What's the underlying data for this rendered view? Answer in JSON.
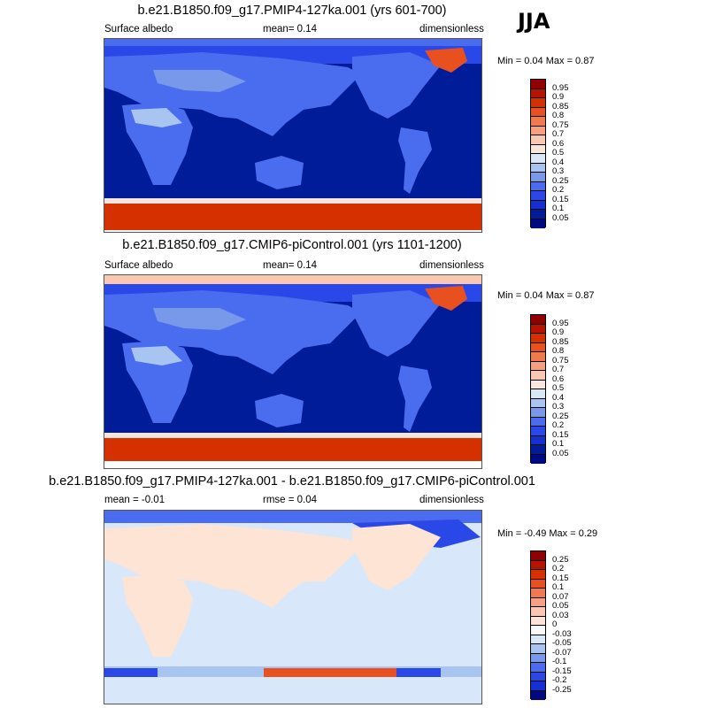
{
  "season": "JJA",
  "panels": [
    {
      "title": "b.e21.B1850.f09_g17.PMIP4-127ka.001 (yrs 601-700)",
      "left_label": "Surface albedo",
      "center_label": "mean=   0.14",
      "right_label": "dimensionless",
      "minmax": "Min =   0.04 Max =   0.87",
      "colorbar_labels": [
        "0.95",
        "0.9",
        "0.85",
        "0.8",
        "0.75",
        "0.7",
        "0.6",
        "0.5",
        "0.4",
        "0.3",
        "0.25",
        "0.2",
        "0.15",
        "0.1",
        "0.05"
      ]
    },
    {
      "title": "b.e21.B1850.f09_g17.CMIP6-piControl.001 (yrs 1101-1200)",
      "left_label": "Surface albedo",
      "center_label": "mean=   0.14",
      "right_label": "dimensionless",
      "minmax": "Min =   0.04 Max =   0.87",
      "colorbar_labels": [
        "0.95",
        "0.9",
        "0.85",
        "0.8",
        "0.75",
        "0.7",
        "0.6",
        "0.5",
        "0.4",
        "0.3",
        "0.25",
        "0.2",
        "0.15",
        "0.1",
        "0.05"
      ]
    },
    {
      "title": "b.e21.B1850.f09_g17.PMIP4-127ka.001 - b.e21.B1850.f09_g17.CMIP6-piControl.001",
      "left_label": "mean =  -0.01",
      "center_label": "rmse =   0.04",
      "right_label": "dimensionless",
      "minmax": "Min =  -0.49 Max =   0.29",
      "colorbar_labels": [
        "0.25",
        "0.2",
        "0.15",
        "0.1",
        "0.07",
        "0.05",
        "0.03",
        "0",
        "-0.03",
        "-0.05",
        "-0.07",
        "-0.1",
        "-0.15",
        "-0.2",
        "-0.25"
      ]
    }
  ],
  "colors": {
    "abs_scale": [
      "#900000",
      "#b41400",
      "#d43000",
      "#e85020",
      "#f07a50",
      "#f6a080",
      "#fac8b0",
      "#f8e6dc",
      "#d8e8f8",
      "#a8c4f0",
      "#7898ea",
      "#4a6cee",
      "#2a48e8",
      "#1430d0",
      "#001c98",
      "#000a80"
    ],
    "diff_scale": [
      "#900000",
      "#b41400",
      "#d43000",
      "#e85020",
      "#f07a50",
      "#f6a080",
      "#fac8b0",
      "#fde4d4",
      "#f8f8f8",
      "#d8e8fa",
      "#a8c4f0",
      "#7898ea",
      "#4a6cee",
      "#2a48e8",
      "#1430d0",
      "#000a80"
    ]
  },
  "chart_data": [
    {
      "type": "heatmap",
      "title": "b.e21.B1850.f09_g17.PMIP4-127ka.001 (yrs 601-700)",
      "variable": "Surface albedo",
      "units": "dimensionless",
      "season": "JJA",
      "mean": 0.14,
      "min": 0.04,
      "max": 0.87,
      "contour_levels": [
        0.05,
        0.1,
        0.15,
        0.2,
        0.25,
        0.3,
        0.4,
        0.5,
        0.6,
        0.7,
        0.75,
        0.8,
        0.85,
        0.9,
        0.95
      ]
    },
    {
      "type": "heatmap",
      "title": "b.e21.B1850.f09_g17.CMIP6-piControl.001 (yrs 1101-1200)",
      "variable": "Surface albedo",
      "units": "dimensionless",
      "season": "JJA",
      "mean": 0.14,
      "min": 0.04,
      "max": 0.87,
      "contour_levels": [
        0.05,
        0.1,
        0.15,
        0.2,
        0.25,
        0.3,
        0.4,
        0.5,
        0.6,
        0.7,
        0.75,
        0.8,
        0.85,
        0.9,
        0.95
      ]
    },
    {
      "type": "heatmap",
      "title": "b.e21.B1850.f09_g17.PMIP4-127ka.001 - b.e21.B1850.f09_g17.CMIP6-piControl.001",
      "units": "dimensionless",
      "season": "JJA",
      "mean": -0.01,
      "rmse": 0.04,
      "min": -0.49,
      "max": 0.29,
      "contour_levels": [
        -0.25,
        -0.2,
        -0.15,
        -0.1,
        -0.07,
        -0.05,
        -0.03,
        0,
        0.03,
        0.05,
        0.07,
        0.1,
        0.15,
        0.2,
        0.25
      ]
    }
  ]
}
